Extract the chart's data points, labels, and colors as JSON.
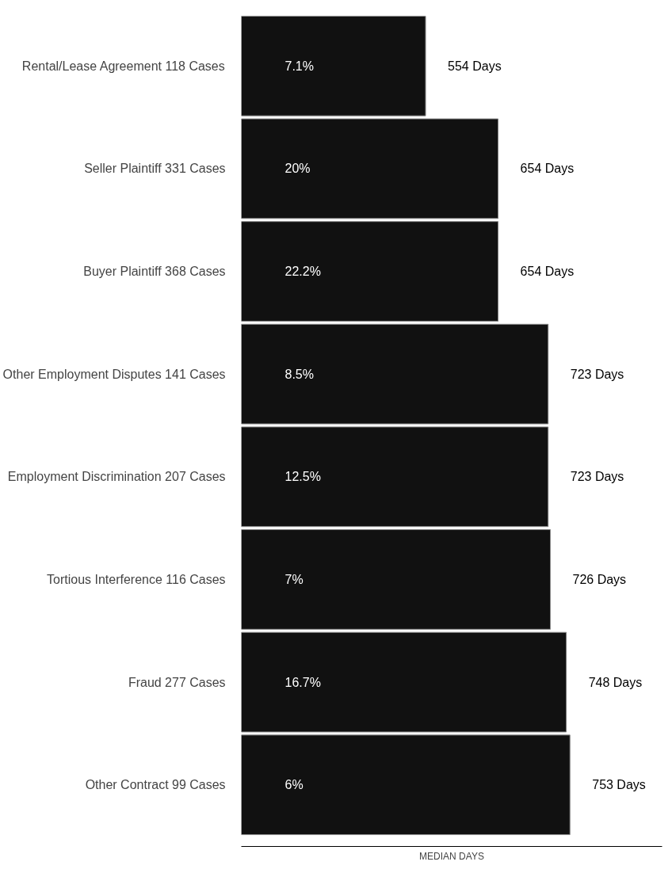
{
  "chart_data": {
    "type": "bar",
    "orientation": "horizontal",
    "xlabel": "MEDIAN DAYS",
    "categories": [
      "Rental/Lease Agreement   118 Cases",
      "Seller Plaintiff   331 Cases",
      "Buyer Plaintiff   368 Cases",
      "Other Employment Disputes   141 Cases",
      "Employment Discrimination   207 Cases",
      "Tortious Interference   116 Cases",
      "Fraud   277 Cases",
      "Other Contract   99 Cases"
    ],
    "values": [
      554,
      654,
      654,
      723,
      723,
      726,
      748,
      753
    ],
    "value_labels": [
      "554 Days",
      "654 Days",
      "654 Days",
      "723 Days",
      "723 Days",
      "726 Days",
      "748 Days",
      "753 Days"
    ],
    "color": "#111111",
    "xlim": [
      300,
      880
    ],
    "tick_labels": "y",
    "grid": false,
    "annotations": [
      "7.1%",
      "20%",
      "22.2%",
      "8.5%",
      "12.5%",
      "7%",
      "16.7%",
      "6%"
    ]
  }
}
